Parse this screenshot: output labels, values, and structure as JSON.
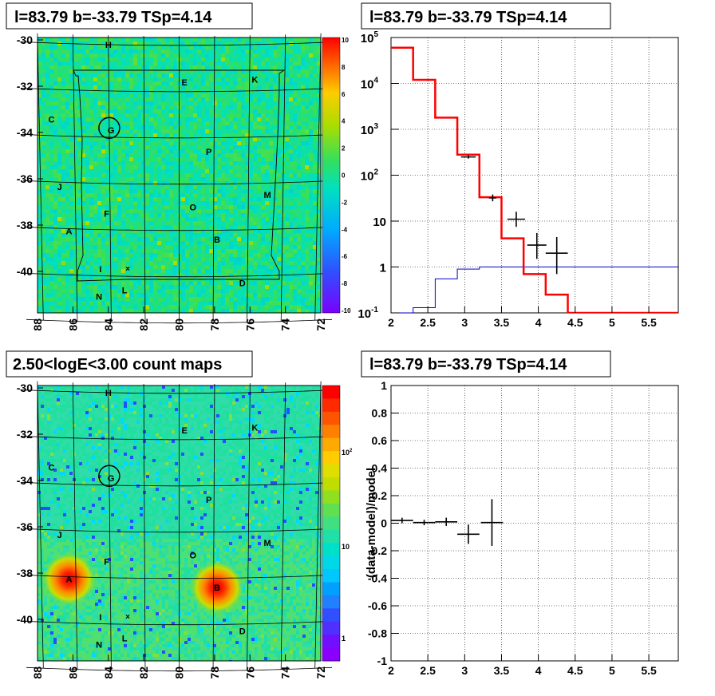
{
  "panels": {
    "top_left": {
      "title": "l=83.79 b=-33.79 TSp=4.14"
    },
    "top_right": {
      "title": "l=83.79 b=-33.79 TSp=4.14"
    },
    "bottom_left": {
      "title": "2.50<logE<3.00 count maps"
    },
    "bottom_right": {
      "title": "l=83.79 b=-33.79 TSp=4.14"
    }
  },
  "colors": {
    "model_line": "#ff0000",
    "background_line": "#0000cc",
    "data_points": "#000000"
  },
  "chart_data": [
    {
      "id": "residual-map",
      "type": "heatmap",
      "title": "l=83.79 b=-33.79 TSp=4.14",
      "x_ticks": [
        "88",
        "86",
        "84",
        "82",
        "80",
        "78",
        "76",
        "74",
        "72"
      ],
      "y_ticks": [
        "-30",
        "-32",
        "-34",
        "-36",
        "-38",
        "-40"
      ],
      "xlim": [
        88,
        72
      ],
      "ylim": [
        -41.7,
        -29.8
      ],
      "colorbar_ticks": [
        "10",
        "8",
        "6",
        "4",
        "2",
        "0",
        "-2",
        "-4",
        "-6",
        "-8",
        "-10"
      ],
      "colorbar_range": [
        -10,
        10
      ],
      "source_labels": [
        {
          "t": "H",
          "l": 84.0,
          "b": -30.0
        },
        {
          "t": "E",
          "l": 79.7,
          "b": -31.6
        },
        {
          "t": "K",
          "l": 75.7,
          "b": -31.5
        },
        {
          "t": "C",
          "l": 87.3,
          "b": -33.3
        },
        {
          "t": "G",
          "l": 83.9,
          "b": -33.7
        },
        {
          "t": "P",
          "l": 78.3,
          "b": -34.6
        },
        {
          "t": "J",
          "l": 86.9,
          "b": -36.2
        },
        {
          "t": "M",
          "l": 74.9,
          "b": -36.5
        },
        {
          "t": "O",
          "l": 79.2,
          "b": -37.0
        },
        {
          "t": "F",
          "l": 84.2,
          "b": -37.3
        },
        {
          "t": "A",
          "l": 86.4,
          "b": -38.1
        },
        {
          "t": "B",
          "l": 77.8,
          "b": -38.4
        },
        {
          "t": "I",
          "l": 84.6,
          "b": -39.7
        },
        {
          "t": "D",
          "l": 76.3,
          "b": -40.3
        },
        {
          "t": "L",
          "l": 83.2,
          "b": -40.6
        },
        {
          "t": "N",
          "l": 84.7,
          "b": -40.9
        }
      ],
      "target": {
        "l": 84.0,
        "b": -33.6
      }
    },
    {
      "id": "spectrum",
      "type": "line",
      "title": "l=83.79 b=-33.79 TSp=4.14",
      "x_ticks": [
        "2",
        "2.5",
        "3",
        "3.5",
        "4",
        "4.5",
        "5",
        "5.5"
      ],
      "y_ticks": [
        "10^-1",
        "1",
        "10",
        "10^2",
        "10^3",
        "10^4",
        "10^5"
      ],
      "xlim": [
        2.0,
        5.9
      ],
      "ylim": [
        0.1,
        100000
      ],
      "y_scale": "log",
      "grid": true,
      "series": [
        {
          "kind": "model-step",
          "edges": [
            2.0,
            2.3,
            2.6,
            2.9,
            3.2,
            3.5,
            3.8,
            4.1,
            4.4,
            5.9
          ],
          "values": [
            60000,
            12000,
            1800,
            280,
            33,
            4.2,
            0.7,
            0.25,
            0.1
          ]
        },
        {
          "kind": "background-step",
          "edges": [
            2.0,
            2.3,
            2.6,
            2.9,
            3.2,
            5.9
          ],
          "values": [
            0.1,
            0.13,
            0.55,
            0.9,
            1.0
          ]
        },
        {
          "kind": "data-points",
          "points": [
            {
              "x": 3.05,
              "y": 250,
              "xerr": 0.1,
              "ylo": 230,
              "yhi": 270
            },
            {
              "x": 3.38,
              "y": 32,
              "xerr": 0.05,
              "ylo": 27,
              "yhi": 38
            },
            {
              "x": 3.7,
              "y": 11,
              "xerr": 0.12,
              "ylo": 7.5,
              "yhi": 16
            },
            {
              "x": 3.98,
              "y": 3.0,
              "xerr": 0.13,
              "ylo": 1.5,
              "yhi": 5.5
            },
            {
              "x": 4.25,
              "y": 2.0,
              "xerr": 0.15,
              "ylo": 0.7,
              "yhi": 4.5
            }
          ]
        }
      ]
    },
    {
      "id": "count-map",
      "type": "heatmap",
      "title": "2.50<logE<3.00 count maps",
      "x_ticks": [
        "88",
        "86",
        "84",
        "82",
        "80",
        "78",
        "76",
        "74",
        "72"
      ],
      "y_ticks": [
        "-30",
        "-32",
        "-34",
        "-36",
        "-38",
        "-40"
      ],
      "colorbar_ticks": [
        "10^2",
        "10",
        "1"
      ],
      "colorbar_scale": "log",
      "hot_sources": [
        {
          "t": "A",
          "l": 86.4,
          "b": -38.1
        },
        {
          "t": "B",
          "l": 77.8,
          "b": -38.4
        }
      ]
    },
    {
      "id": "residual-ratio",
      "type": "scatter",
      "title": "l=83.79 b=-33.79 TSp=4.14",
      "ylabel": "(data-model)/model",
      "x_ticks": [
        "2",
        "2.5",
        "3",
        "3.5",
        "4",
        "4.5",
        "5",
        "5.5"
      ],
      "y_ticks": [
        "1",
        "0.8",
        "0.6",
        "0.4",
        "0.2",
        "0",
        "-0.2",
        "-0.4",
        "-0.6",
        "-0.8",
        "-1"
      ],
      "xlim": [
        2.0,
        5.9
      ],
      "ylim": [
        -1.0,
        1.0
      ],
      "grid": true,
      "points": [
        {
          "x": 2.15,
          "y": 0.02,
          "xerr": 0.15,
          "yerr": 0.02
        },
        {
          "x": 2.45,
          "y": 0.005,
          "xerr": 0.15,
          "yerr": 0.02
        },
        {
          "x": 2.75,
          "y": 0.01,
          "xerr": 0.15,
          "yerr": 0.03
        },
        {
          "x": 3.05,
          "y": -0.08,
          "xerr": 0.15,
          "yerr": 0.07
        },
        {
          "x": 3.37,
          "y": 0.005,
          "xerr": 0.15,
          "yerr": 0.17
        }
      ]
    }
  ]
}
